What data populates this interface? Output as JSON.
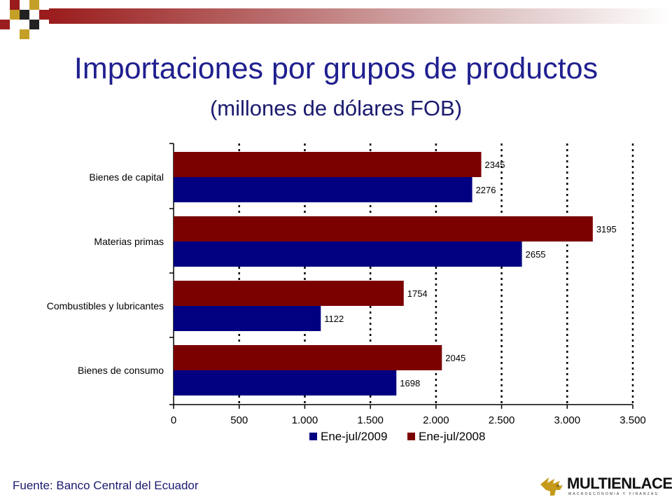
{
  "colors": {
    "series_2009": "#000080",
    "series_2008": "#7b0000",
    "title": "#1f1f8f",
    "accent_red": "#9b1c1c",
    "accent_gold": "#c5a028"
  },
  "header": {
    "title": "Importaciones por grupos de productos",
    "subtitle": "(millones de dólares FOB)"
  },
  "footer": {
    "source": "Fuente: Banco Central del Ecuador",
    "logo_name": "MULTIENLACE",
    "logo_tagline": "MACROECONOMIA Y FINANZAS",
    "logo_icon": "winged-lion-icon"
  },
  "chart_data": {
    "type": "bar",
    "orientation": "horizontal",
    "categories": [
      "Bienes de capital",
      "Materias primas",
      "Combustibles y lubricantes",
      "Bienes de consumo"
    ],
    "series": [
      {
        "name": "Ene-jul/2008",
        "values": [
          2345,
          3195,
          1754,
          2045
        ],
        "color": "#7b0000"
      },
      {
        "name": "Ene-jul/2009",
        "values": [
          2276,
          2655,
          1122,
          1698
        ],
        "color": "#000080"
      }
    ],
    "xlim": [
      0,
      3500
    ],
    "xticks": [
      "0",
      "500",
      "1.000",
      "1.500",
      "2.000",
      "2.500",
      "3.000",
      "3.500"
    ],
    "xtick_values": [
      0,
      500,
      1000,
      1500,
      2000,
      2500,
      3000,
      3500
    ],
    "grid": "vertical dotted",
    "data_labels": true,
    "legend": {
      "position": "bottom",
      "order": [
        "Ene-jul/2009",
        "Ene-jul/2008"
      ]
    }
  }
}
